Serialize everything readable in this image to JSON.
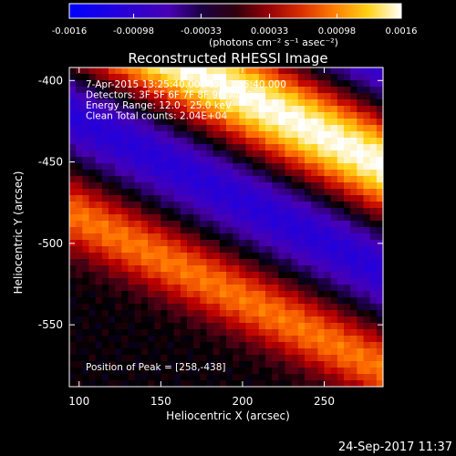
{
  "colorbar": {
    "tick_labels": [
      "-0.0016",
      "-0.00098",
      "-0.00033",
      "0.00033",
      "0.00098",
      "0.0016"
    ],
    "tick_values": [
      -0.0016,
      -0.00098,
      -0.00033,
      0.00033,
      0.00098,
      0.0016
    ],
    "range": [
      -0.0016,
      0.0016
    ],
    "units_label": "(photons cm⁻² s⁻¹ asec⁻²)"
  },
  "plot": {
    "title": "Reconstructed RHESSI Image",
    "info_lines": [
      "7-Apr-2015 13:25:40.000 to 13:35:40.000",
      "Detectors: 3F 5F 6F 7F 8F 9F, Att 0",
      "Energy Range: 12.0 - 25.0 keV",
      "Clean     Total counts: 2.04E+04"
    ],
    "peak_text": "Position of Peak = [258,-438]",
    "xlabel": "Heliocentric X (arcsec)",
    "ylabel": "Heliocentric Y (arcsec)",
    "x_ticks": [
      "100",
      "150",
      "200",
      "250"
    ],
    "x_tick_values": [
      100,
      150,
      200,
      250
    ],
    "y_ticks": [
      "-400",
      "-450",
      "-500",
      "-550"
    ],
    "y_tick_values": [
      -400,
      -450,
      -500,
      -550
    ],
    "xlim": [
      94,
      286
    ],
    "ylim": [
      -588,
      -392
    ],
    "peak": [
      258,
      -438
    ],
    "colors": {
      "background": "#000000",
      "negative": "#0000ff",
      "positive_peak": "#ffffff"
    }
  },
  "footer": {
    "timestamp": "24-Sep-2017 11:37"
  },
  "chart_data": {
    "type": "heatmap",
    "title": "Reconstructed RHESSI Image",
    "xlabel": "Heliocentric X (arcsec)",
    "ylabel": "Heliocentric Y (arcsec)",
    "xlim": [
      94,
      286
    ],
    "ylim": [
      -588,
      -392
    ],
    "x_ticks": [
      100,
      150,
      200,
      250
    ],
    "y_ticks": [
      -400,
      -450,
      -500,
      -550
    ],
    "colorbar_range": [
      -0.0016,
      0.0016
    ],
    "colorbar_ticks": [
      -0.0016,
      -0.00098,
      -0.00033,
      0.00033,
      0.00098,
      0.0016
    ],
    "colorbar_label": "(photons cm⁻² s⁻¹ asec⁻²)",
    "peak_position": [
      258,
      -438
    ],
    "annotations": [
      "7-Apr-2015 13:25:40.000 to 13:35:40.000",
      "Detectors: 3F 5F 6F 7F 8F 9F, Att 0",
      "Energy Range: 12.0 - 25.0 keV",
      "Clean     Total counts: 2.04E+04",
      "Position of Peak = [258,-438]"
    ]
  }
}
